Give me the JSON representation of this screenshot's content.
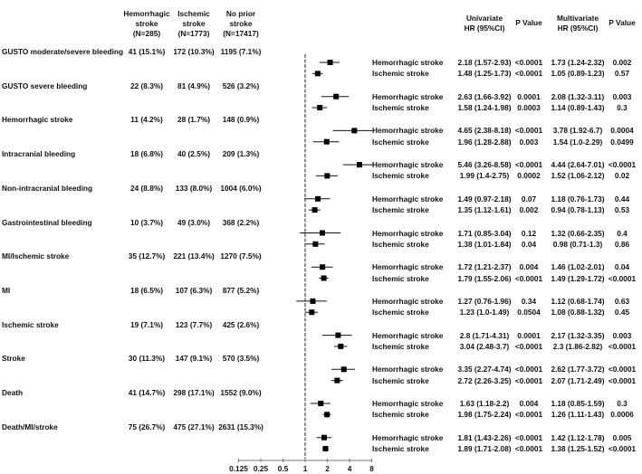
{
  "headers": {
    "hem": "Hemorrhagic\nstroke\n(N=285)",
    "isch": "Ischemic\nstroke\n(N=1773)",
    "none": "No prior\nstroke\n(N=17417)",
    "uni": "Univariate\nHR (95%CI)",
    "p1": "P Value",
    "multi": "Multivariate\nHR (95%CI)",
    "p2": "P Value"
  },
  "chart_data": {
    "type": "forest",
    "x_scale": "log2",
    "xlim": [
      0.125,
      8
    ],
    "x_ticks": [
      "0.125",
      "0.25",
      "0.5",
      "1",
      "2",
      "4",
      "8"
    ],
    "reference_line": 1,
    "groups": [
      {
        "outcome": "GUSTO moderate/severe bleeding",
        "hem": "41 (15.1%)",
        "isch": "172 (10.3%)",
        "none": "1195 (7.1%)",
        "rows": [
          {
            "label": "Hemorrhagic stroke",
            "hr": 2.18,
            "lo": 1.57,
            "hi": 2.93,
            "uni": "2.18 (1.57-2.93)",
            "p1": "<0.0001",
            "multi": "1.73 (1.24-2.32)",
            "p2": "0.002"
          },
          {
            "label": "Ischemic stroke",
            "hr": 1.48,
            "lo": 1.25,
            "hi": 1.73,
            "uni": "1.48 (1.25-1.73)",
            "p1": "<0.0001",
            "multi": "1.05 (0.89-1.23)",
            "p2": "0.57"
          }
        ]
      },
      {
        "outcome": "GUSTO severe bleeding",
        "hem": "22 (8.3%)",
        "isch": "81 (4.9%)",
        "none": "526 (3.2%)",
        "rows": [
          {
            "label": "Hemorrhagic stroke",
            "hr": 2.63,
            "lo": 1.66,
            "hi": 3.92,
            "uni": "2.63 (1.66-3.92)",
            "p1": "0.0001",
            "multi": "2.08 (1.32-3.11)",
            "p2": "0.003"
          },
          {
            "label": "Ischemic stroke",
            "hr": 1.58,
            "lo": 1.24,
            "hi": 1.98,
            "uni": "1.58 (1.24-1.98)",
            "p1": "0.0003",
            "multi": "1.14 (0.89-1.43)",
            "p2": "0.3"
          }
        ]
      },
      {
        "outcome": "Hemorrhagic stroke",
        "hem": "11 (4.2%)",
        "isch": "28 (1.7%)",
        "none": "148 (0.9%)",
        "rows": [
          {
            "label": "Hemorrhagic stroke",
            "hr": 4.65,
            "lo": 2.38,
            "hi": 8.18,
            "uni": "4.65 (2.38-8.18)",
            "p1": "<0.0001",
            "multi": "3.78 (1.92-6.7)",
            "p2": "0.0004"
          },
          {
            "label": "Ischemic stroke",
            "hr": 1.96,
            "lo": 1.28,
            "hi": 2.88,
            "uni": "1.96 (1.28-2.88)",
            "p1": "0.003",
            "multi": "1.54 (1.0-2.29)",
            "p2": "0.0499"
          }
        ]
      },
      {
        "outcome": "Intracranial bleeding",
        "hem": "18 (6.8%)",
        "isch": "40 (2.5%)",
        "none": "209 (1.3%)",
        "rows": [
          {
            "label": "Hemorrhagic stroke",
            "hr": 5.46,
            "lo": 3.26,
            "hi": 8.58,
            "uni": "5.46 (3.26-8.58)",
            "p1": "<0.0001",
            "multi": "4.44 (2.64-7.01)",
            "p2": "<0.0001"
          },
          {
            "label": "Ischemic stroke",
            "hr": 1.99,
            "lo": 1.4,
            "hi": 2.75,
            "uni": "1.99 (1.4-2.75)",
            "p1": "0.0002",
            "multi": "1.52 (1.06-2.12)",
            "p2": "0.02"
          }
        ]
      },
      {
        "outcome": "Non-intracranial bleeding",
        "hem": "24 (8.8%)",
        "isch": "133 (8.0%)",
        "none": "1004 (6.0%)",
        "rows": [
          {
            "label": "Hemorrhagic stroke",
            "hr": 1.49,
            "lo": 0.97,
            "hi": 2.18,
            "uni": "1.49 (0.97-2.18)",
            "p1": "0.07",
            "multi": "1.18 (0.76-1.73)",
            "p2": "0.44"
          },
          {
            "label": "Ischemic stroke",
            "hr": 1.35,
            "lo": 1.12,
            "hi": 1.61,
            "uni": "1.35 (1.12-1.61)",
            "p1": "0.002",
            "multi": "0.94 (0.78-1.13)",
            "p2": "0.53"
          }
        ]
      },
      {
        "outcome": "Gastrointestinal bleeding",
        "hem": "10 (3.7%)",
        "isch": "49 (3.0%)",
        "none": "368 (2.2%)",
        "rows": [
          {
            "label": "Hemorrhagic stroke",
            "hr": 1.71,
            "lo": 0.85,
            "hi": 3.04,
            "uni": "1.71 (0.85-3.04)",
            "p1": "0.12",
            "multi": "1.32 (0.66-2.35)",
            "p2": "0.4"
          },
          {
            "label": "Ischemic stroke",
            "hr": 1.38,
            "lo": 1.01,
            "hi": 1.84,
            "uni": "1.38 (1.01-1.84)",
            "p1": "0.04",
            "multi": "0.98 (0.71-1.3)",
            "p2": "0.86"
          }
        ]
      },
      {
        "outcome": "MI/Ischemic stroke",
        "hem": "35 (12.7%)",
        "isch": "221 (13.4%)",
        "none": "1270 (7.5%)",
        "rows": [
          {
            "label": "Hemorrhagic stroke",
            "hr": 1.72,
            "lo": 1.21,
            "hi": 2.37,
            "uni": "1.72 (1.21-2.37)",
            "p1": "0.004",
            "multi": "1.46 (1.02-2.01)",
            "p2": "0.04"
          },
          {
            "label": "Ischemic stroke",
            "hr": 1.79,
            "lo": 1.55,
            "hi": 2.06,
            "uni": "1.79 (1.55-2.06)",
            "p1": "<0.0001",
            "multi": "1.49 (1.29-1.72)",
            "p2": "<0.0001"
          }
        ]
      },
      {
        "outcome": "MI",
        "hem": "18 (6.5%)",
        "isch": "107 (6.3%)",
        "none": "877 (5.2%)",
        "rows": [
          {
            "label": "Hemorrhagic stroke",
            "hr": 1.27,
            "lo": 0.76,
            "hi": 1.96,
            "uni": "1.27 (0.76-1.96)",
            "p1": "0.34",
            "multi": "1.12 (0.68-1.74)",
            "p2": "0.63"
          },
          {
            "label": "Ischemic stroke",
            "hr": 1.23,
            "lo": 1.0,
            "hi": 1.49,
            "uni": "1.23 (1.0-1.49)",
            "p1": "0.0504",
            "multi": "1.08 (0.88-1.32)",
            "p2": "0.45"
          }
        ]
      },
      {
        "outcome": "Ischemic stroke",
        "hem": "19 (7.1%)",
        "isch": "123 (7.7%)",
        "none": "425 (2.6%)",
        "rows": [
          {
            "label": "Hemorrhagic stroke",
            "hr": 2.8,
            "lo": 1.71,
            "hi": 4.31,
            "uni": "2.8 (1.71-4.31)",
            "p1": "0.0001",
            "multi": "2.17 (1.32-3.35)",
            "p2": "0.003"
          },
          {
            "label": "Ischemic stroke",
            "hr": 3.04,
            "lo": 2.48,
            "hi": 3.7,
            "uni": "3.04 (2.48-3.7)",
            "p1": "<0.0001",
            "multi": "2.3 (1.86-2.82)",
            "p2": "<0.0001"
          }
        ]
      },
      {
        "outcome": "Stroke",
        "hem": "30 (11.3%)",
        "isch": "147 (9.1%)",
        "none": "570 (3.5%)",
        "rows": [
          {
            "label": "Hemorrhagic stroke",
            "hr": 3.35,
            "lo": 2.27,
            "hi": 4.74,
            "uni": "3.35 (2.27-4.74)",
            "p1": "<0.0001",
            "multi": "2.62 (1.77-3.72)",
            "p2": "<0.0001"
          },
          {
            "label": "Ischemic stroke",
            "hr": 2.72,
            "lo": 2.26,
            "hi": 3.25,
            "uni": "2.72 (2.26-3.25)",
            "p1": "<0.0001",
            "multi": "2.07 (1.71-2.49)",
            "p2": "<0.0001"
          }
        ]
      },
      {
        "outcome": "Death",
        "hem": "41 (14.7%)",
        "isch": "298 (17.1%)",
        "none": "1552 (9.0%)",
        "rows": [
          {
            "label": "Hemorrhagic stroke",
            "hr": 1.63,
            "lo": 1.18,
            "hi": 2.2,
            "uni": "1.63 (1.18-2.2)",
            "p1": "0.004",
            "multi": "1.18 (0.85-1.59)",
            "p2": "0.3"
          },
          {
            "label": "Ischemic stroke",
            "hr": 1.98,
            "lo": 1.75,
            "hi": 2.24,
            "uni": "1.98 (1.75-2.24)",
            "p1": "<0.0001",
            "multi": "1.26 (1.11-1.43)",
            "p2": "0.0006"
          }
        ]
      },
      {
        "outcome": "Death/MI/stroke",
        "hem": "75 (26.7%)",
        "isch": "475 (27.1%)",
        "none": "2631 (15.3%)",
        "rows": [
          {
            "label": "Hemorrhagic stroke",
            "hr": 1.81,
            "lo": 1.43,
            "hi": 2.26,
            "uni": "1.81 (1.43-2.26)",
            "p1": "<0.0001",
            "multi": "1.42 (1.12-1.78)",
            "p2": "0.005"
          },
          {
            "label": "Ischemic stroke",
            "hr": 1.89,
            "lo": 1.71,
            "hi": 2.08,
            "uni": "1.89 (1.71-2.08)",
            "p1": "<0.0001",
            "multi": "1.38 (1.25-1.52)",
            "p2": "<0.0001"
          }
        ]
      }
    ]
  }
}
